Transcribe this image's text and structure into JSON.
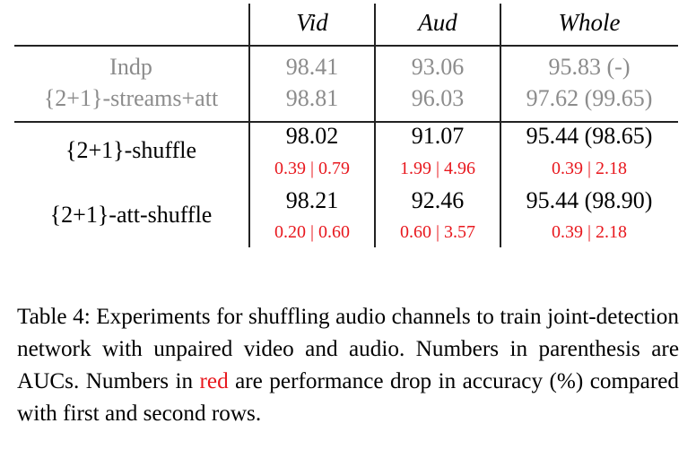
{
  "table": {
    "headers": [
      "Vid",
      "Aud",
      "Whole"
    ],
    "baseline_rows": [
      {
        "label": "Indp",
        "vid": "98.41",
        "aud": "93.06",
        "whole": "95.83 (-)"
      },
      {
        "label": "{2+1}-streams+att",
        "vid": "98.81",
        "aud": "96.03",
        "whole": "97.62 (99.65)"
      }
    ],
    "shuffle_rows": [
      {
        "label": "{2+1}-shuffle",
        "vid": "98.02",
        "aud": "91.07",
        "whole": "95.44 (98.65)",
        "vid_drop": "0.39 | 0.79",
        "aud_drop": "1.99 | 4.96",
        "whole_drop": "0.39 | 2.18"
      },
      {
        "label": "{2+1}-att-shuffle",
        "vid": "98.21",
        "aud": "92.46",
        "whole": "95.44 (98.90)",
        "vid_drop": "0.20 | 0.60",
        "aud_drop": "0.60 | 3.57",
        "whole_drop": "0.39 | 2.18"
      }
    ]
  },
  "caption": {
    "part1": "Table 4: Experiments for shuffling audio channels to train joint-detection network with unpaired video and audio. Numbers in parenthesis are AUCs. Numbers in ",
    "red_word": "red",
    "part2": " are performance drop in accuracy (%) compared with first and second rows."
  },
  "colors": {
    "highlight": "#e8181e",
    "baseline_text": "#8c8c8c"
  }
}
